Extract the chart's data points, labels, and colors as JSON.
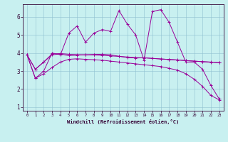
{
  "xlabel": "Windchill (Refroidissement éolien,°C)",
  "background_color": "#c8f0f0",
  "line_color": "#990099",
  "ylim": [
    0.8,
    6.7
  ],
  "xlim": [
    -0.5,
    23.5
  ],
  "yticks": [
    1,
    2,
    3,
    4,
    5,
    6
  ],
  "xticks": [
    0,
    1,
    2,
    3,
    4,
    5,
    6,
    7,
    8,
    9,
    10,
    11,
    12,
    13,
    14,
    15,
    16,
    17,
    18,
    19,
    20,
    21,
    22,
    23
  ],
  "series": [
    {
      "x": [
        0,
        1,
        2,
        3,
        4,
        5,
        6,
        7,
        8,
        9,
        10,
        11,
        12,
        13,
        14,
        15,
        16,
        17,
        18,
        19,
        20,
        21,
        22,
        23
      ],
      "y": [
        3.9,
        2.6,
        3.0,
        4.0,
        3.9,
        5.1,
        5.5,
        4.6,
        5.1,
        5.3,
        5.2,
        6.35,
        5.6,
        5.0,
        3.6,
        6.3,
        6.4,
        5.7,
        4.6,
        3.5,
        3.5,
        3.1,
        2.2,
        1.45
      ]
    },
    {
      "x": [
        0,
        1,
        2,
        3,
        4,
        5,
        6,
        7,
        8,
        9,
        10,
        11,
        12,
        13,
        14,
        15,
        16,
        17,
        18,
        19,
        20,
        21,
        22,
        23
      ],
      "y": [
        3.9,
        3.1,
        3.5,
        3.9,
        3.95,
        3.85,
        3.88,
        3.9,
        3.92,
        3.93,
        3.9,
        3.82,
        3.75,
        3.72,
        3.74,
        3.7,
        3.67,
        3.64,
        3.62,
        3.58,
        3.55,
        3.52,
        3.5,
        3.47
      ]
    },
    {
      "x": [
        0,
        1,
        2,
        3,
        4,
        5,
        6,
        7,
        8,
        9,
        10,
        11,
        12,
        13,
        14,
        15,
        16,
        17,
        18,
        19,
        20,
        21,
        22,
        23
      ],
      "y": [
        3.9,
        3.1,
        3.5,
        3.95,
        3.97,
        3.93,
        3.91,
        3.9,
        3.89,
        3.87,
        3.84,
        3.81,
        3.78,
        3.75,
        3.73,
        3.7,
        3.67,
        3.64,
        3.61,
        3.58,
        3.55,
        3.52,
        3.49,
        3.46
      ]
    },
    {
      "x": [
        0,
        1,
        2,
        3,
        4,
        5,
        6,
        7,
        8,
        9,
        10,
        11,
        12,
        13,
        14,
        15,
        16,
        17,
        18,
        19,
        20,
        21,
        22,
        23
      ],
      "y": [
        3.9,
        2.6,
        2.85,
        3.2,
        3.5,
        3.65,
        3.68,
        3.65,
        3.63,
        3.6,
        3.55,
        3.5,
        3.45,
        3.4,
        3.35,
        3.3,
        3.25,
        3.15,
        3.05,
        2.85,
        2.55,
        2.15,
        1.65,
        1.4
      ]
    }
  ]
}
